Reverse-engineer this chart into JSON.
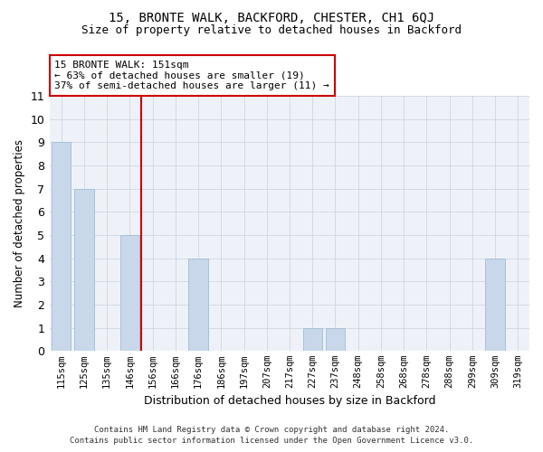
{
  "title": "15, BRONTE WALK, BACKFORD, CHESTER, CH1 6QJ",
  "subtitle": "Size of property relative to detached houses in Backford",
  "xlabel": "Distribution of detached houses by size in Backford",
  "ylabel": "Number of detached properties",
  "categories": [
    "115sqm",
    "125sqm",
    "135sqm",
    "146sqm",
    "156sqm",
    "166sqm",
    "176sqm",
    "186sqm",
    "197sqm",
    "207sqm",
    "217sqm",
    "227sqm",
    "237sqm",
    "248sqm",
    "258sqm",
    "268sqm",
    "278sqm",
    "288sqm",
    "299sqm",
    "309sqm",
    "319sqm"
  ],
  "values": [
    9,
    7,
    0,
    5,
    0,
    0,
    4,
    0,
    0,
    0,
    0,
    1,
    1,
    0,
    0,
    0,
    0,
    0,
    0,
    4,
    0
  ],
  "bar_color": "#c8d8ea",
  "bar_edge_color": "#a8c0d8",
  "grid_color": "#c8d0dc",
  "background_color": "#eef2f8",
  "vline_x_idx": 3.5,
  "vline_color": "#cc0000",
  "annotation_line1": "15 BRONTE WALK: 151sqm",
  "annotation_line2": "← 63% of detached houses are smaller (19)",
  "annotation_line3": "37% of semi-detached houses are larger (11) →",
  "annotation_box_color": "#ffffff",
  "annotation_box_edge": "#cc0000",
  "ylim": [
    0,
    11
  ],
  "yticks": [
    0,
    1,
    2,
    3,
    4,
    5,
    6,
    7,
    8,
    9,
    10,
    11
  ],
  "footer_line1": "Contains HM Land Registry data © Crown copyright and database right 2024.",
  "footer_line2": "Contains public sector information licensed under the Open Government Licence v3.0."
}
